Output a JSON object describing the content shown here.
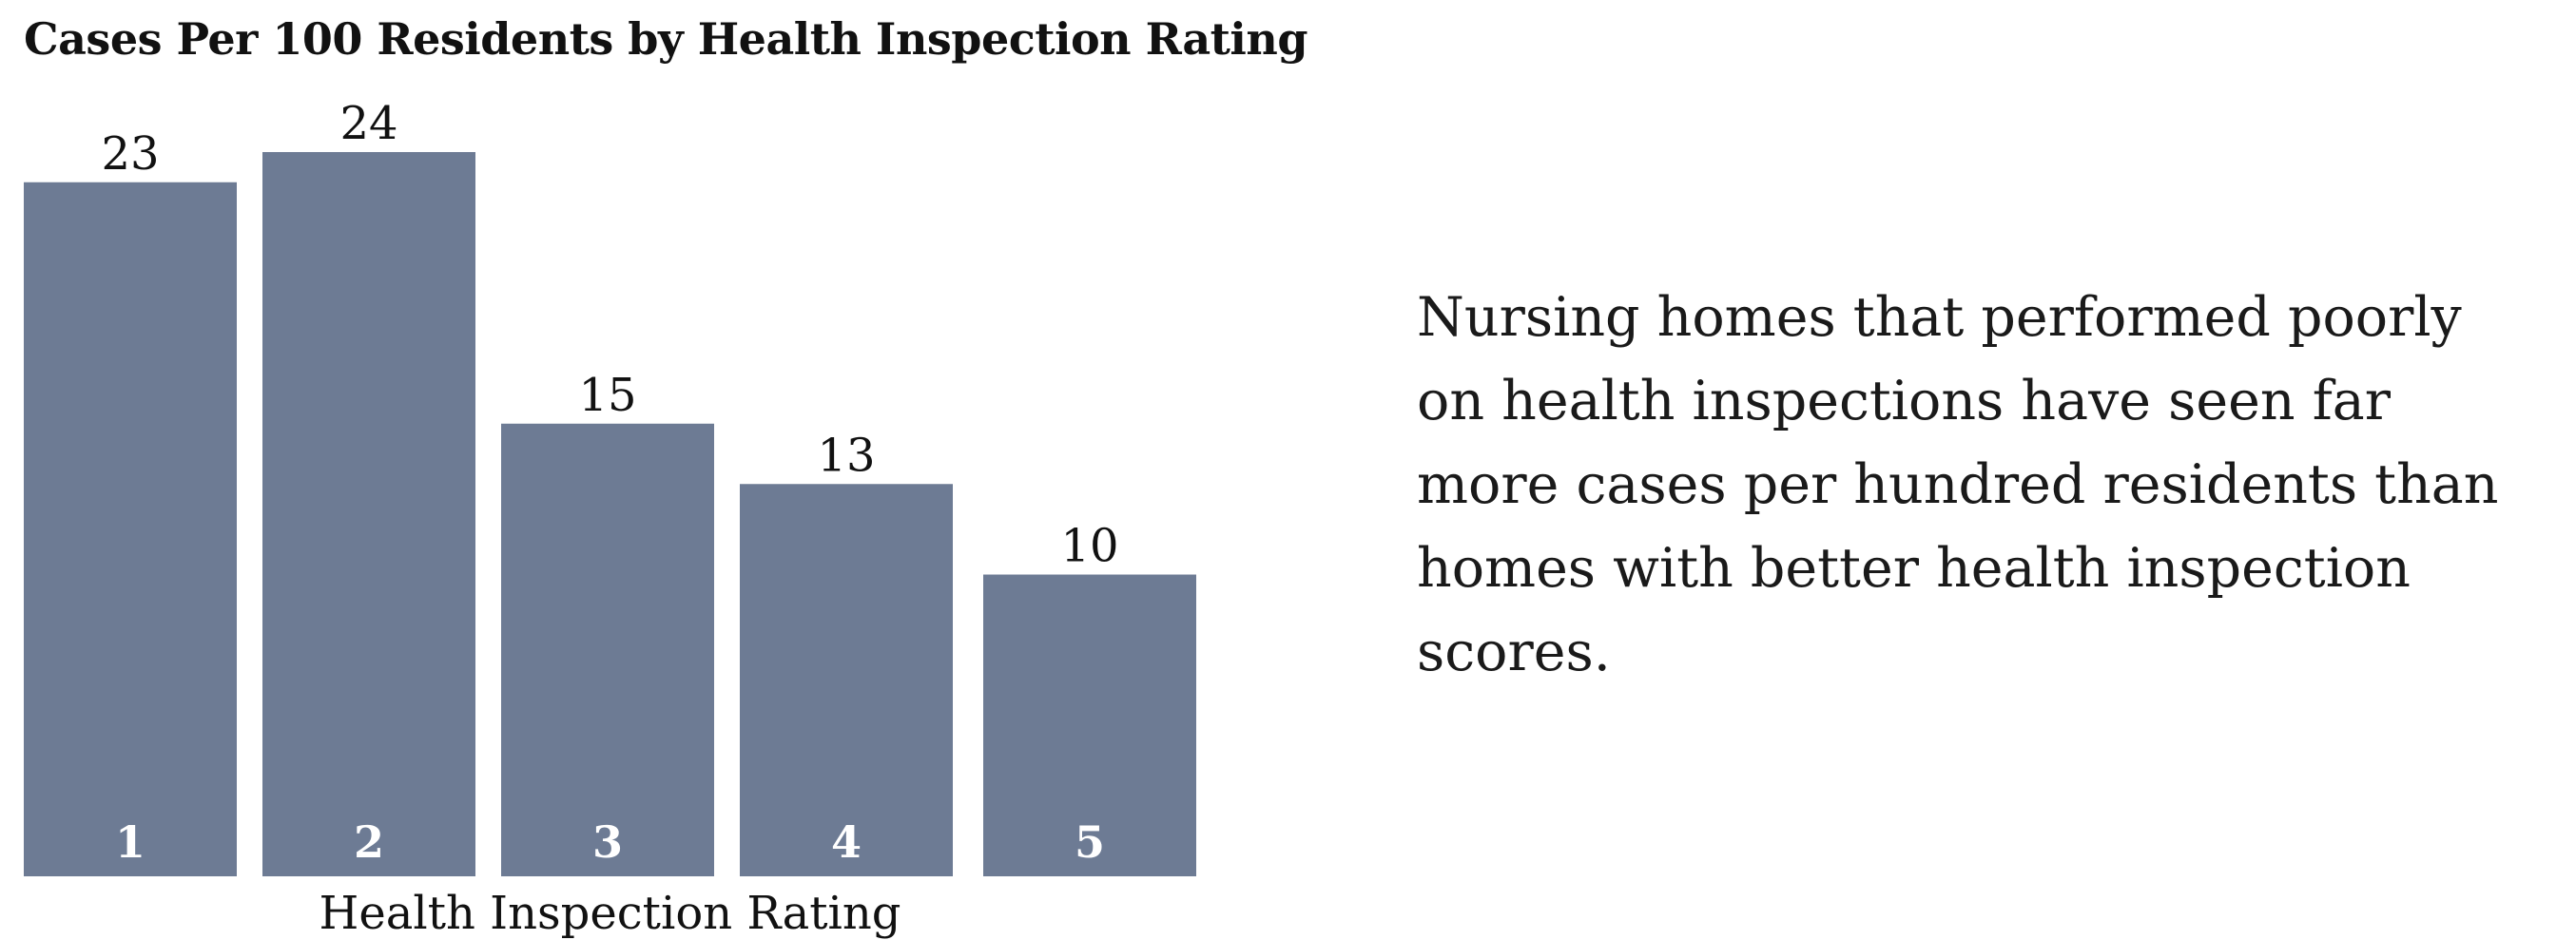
{
  "chart_data": {
    "type": "bar",
    "title": "Cases Per 100 Residents by Health Inspection Rating",
    "xlabel": "Health Inspection Rating",
    "ylabel": "",
    "categories": [
      "1",
      "2",
      "3",
      "4",
      "5"
    ],
    "values": [
      23,
      24,
      15,
      13,
      10
    ],
    "ylim": [
      0,
      24
    ],
    "grid": false,
    "bar_color": "#6d7b94",
    "data_labels": true
  },
  "annotation": {
    "text": "Nursing homes that performed poorly on health inspections have seen far more cases per hundred residents than homes with better health inspection scores."
  }
}
